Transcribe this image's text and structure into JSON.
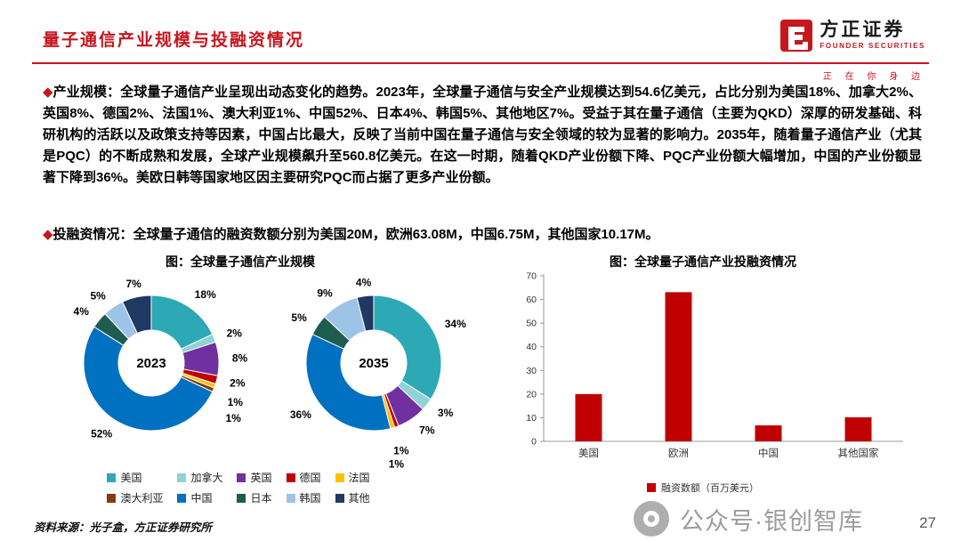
{
  "header": {
    "title": "量子通信产业规模与投融资情况",
    "logo": {
      "name_cn": "方正证券",
      "name_en": "FOUNDER SECURITIES",
      "tagline": "正 在 你 身 边"
    },
    "accent_color": "#C8161E"
  },
  "paragraphs": {
    "industry_scale": {
      "bullet": "◆",
      "label": "产业规模：",
      "text": "全球量子通信产业呈现出动态变化的趋势。2023年，全球量子通信与安全产业规模达到54.6亿美元，占比分别为美国18%、加拿大2%、英国8%、德国2%、法国1%、澳大利亚1%、中国52%、日本4%、韩国5%、其他地区7%。受益于其在量子通信（主要为QKD）深厚的研发基础、科研机构的活跃以及政策支持等因素，中国占比最大，反映了当前中国在量子通信与安全领域的较为显著的影响力。2035年，随着量子通信产业（尤其是PQC）的不断成熟和发展，全球产业规模飙升至560.8亿美元。在这一时期，随着QKD产业份额下降、PQC产业份额大幅增加，中国的产业份额显著下降到36%。美欧日韩等国家地区因主要研究PQC而占据了更多产业份额。"
    },
    "investment": {
      "bullet": "◆",
      "label": "投融资情况：",
      "text": "全球量子通信的融资数额分别为美国20M，欧洲63.08M，中国6.75M，其他国家10.17M。"
    }
  },
  "chart_data": [
    {
      "type": "pie",
      "subtype": "donut",
      "title": "图：全球量子通信产业规模",
      "center_label": "2023",
      "categories": [
        "美国",
        "加拿大",
        "英国",
        "德国",
        "法国",
        "澳大利亚",
        "中国",
        "日本",
        "韩国",
        "其他"
      ],
      "values": [
        18,
        2,
        8,
        2,
        1,
        1,
        52,
        4,
        5,
        7
      ],
      "colors": [
        "#2CA9B4",
        "#8FD3D4",
        "#7030A0",
        "#C00000",
        "#FFC000",
        "#843C0C",
        "#0070C0",
        "#1E5C50",
        "#9DC3E6",
        "#1F3864"
      ],
      "value_suffix": "%",
      "legend_position": "bottom"
    },
    {
      "type": "pie",
      "subtype": "donut",
      "title": "图：全球量子通信产业规模",
      "center_label": "2035",
      "categories": [
        "美国",
        "加拿大",
        "英国",
        "德国",
        "法国",
        "澳大利亚",
        "中国",
        "日本",
        "韩国",
        "其他"
      ],
      "values": [
        34,
        3,
        7,
        1,
        1,
        0,
        36,
        5,
        9,
        4
      ],
      "colors": [
        "#2CA9B4",
        "#8FD3D4",
        "#7030A0",
        "#C00000",
        "#FFC000",
        "#843C0C",
        "#0070C0",
        "#1E5C50",
        "#9DC3E6",
        "#1F3864"
      ],
      "value_suffix": "%",
      "legend_position": "bottom"
    },
    {
      "type": "bar",
      "title": "图：全球量子通信产业投融资情况",
      "categories": [
        "美国",
        "欧洲",
        "中国",
        "其他国家"
      ],
      "values": [
        20,
        63.08,
        6.75,
        10.17
      ],
      "ylim": [
        0,
        70
      ],
      "ytick_step": 10,
      "grid": false,
      "bar_color": "#C00000",
      "legend": [
        "融资数额（百万美元）"
      ],
      "legend_position": "bottom"
    }
  ],
  "footer": {
    "source": "资料来源：光子盒，方正证券研究所",
    "watermark": "公众号·银创智库",
    "page": "27"
  }
}
